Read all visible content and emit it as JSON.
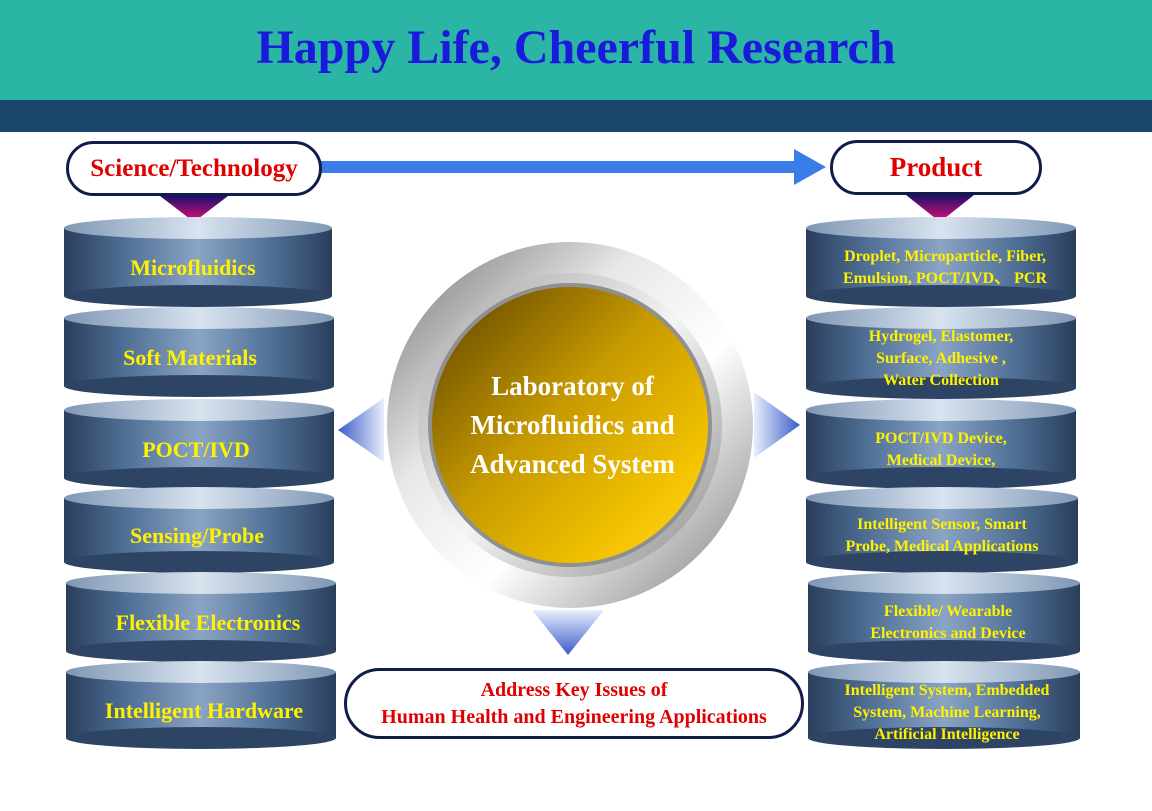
{
  "title": "Happy Life, Cheerful Research",
  "science_label": "Science/Technology",
  "product_label": "Product",
  "center": {
    "lines": [
      "Laboratory of",
      "Microfluidics and",
      "Advanced System"
    ]
  },
  "address": {
    "line1": "Address Key Issues of",
    "line2": "Human Health and Engineering Applications"
  },
  "left_items": [
    {
      "label": "Microfluidics"
    },
    {
      "label": "Soft Materials"
    },
    {
      "label": "POCT/IVD"
    },
    {
      "label": "Sensing/Probe"
    },
    {
      "label": "Flexible Electronics"
    },
    {
      "label": "Intelligent Hardware"
    }
  ],
  "right_items": [
    {
      "lines": [
        "Droplet, Microparticle, Fiber,",
        "Emulsion, POCT/IVD、 PCR"
      ]
    },
    {
      "lines": [
        "Hydrogel, Elastomer,",
        "Surface,  Adhesive ,",
        "Water Collection"
      ]
    },
    {
      "lines": [
        "POCT/IVD Device,",
        "Medical Device,"
      ]
    },
    {
      "lines": [
        "Intelligent Sensor, Smart",
        "Probe,  Medical Applications"
      ]
    },
    {
      "lines": [
        "Flexible/ Wearable",
        "Electronics and Device"
      ]
    },
    {
      "lines": [
        "Intelligent System, Embedded",
        "System, Machine Learning,",
        "Artificial Intelligence"
      ]
    }
  ],
  "colors": {
    "banner": "#2ab5a5",
    "band": "#19466a",
    "title": "#1a1adc",
    "pill_text": "#e00000",
    "cylinder_text": "#fff200",
    "arrow": "#3a7de8"
  }
}
